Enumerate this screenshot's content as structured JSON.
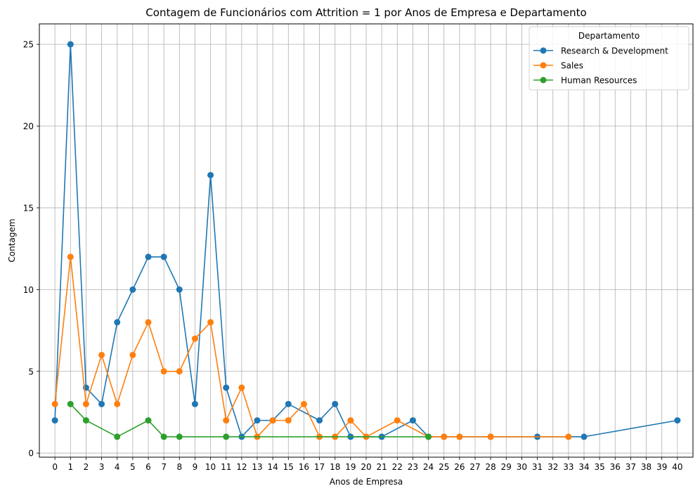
{
  "chart_data": {
    "type": "line",
    "title": "Contagem de  Funcionários com Attrition = 1 por Anos de Empresa e Departamento",
    "xlabel": "Anos de Empresa",
    "ylabel": "Contagem",
    "xticks": [
      "0",
      "1",
      "2",
      "3",
      "4",
      "5",
      "6",
      "7",
      "8",
      "9",
      "10",
      "11",
      "12",
      "13",
      "14",
      "15",
      "16",
      "17",
      "18",
      "19",
      "20",
      "21",
      "22",
      "23",
      "24",
      "25",
      "26",
      "27",
      "28",
      "29",
      "30",
      "31",
      "32",
      "33",
      "34",
      "35",
      "36",
      "37",
      "38",
      "39",
      "40"
    ],
    "yticks": [
      "0",
      "5",
      "10",
      "15",
      "20",
      "25"
    ],
    "xlim": [
      -1,
      41
    ],
    "ylim": [
      -0.25,
      26.25
    ],
    "grid": true,
    "legend": {
      "title": "Departamento",
      "position": "top-right"
    },
    "series": [
      {
        "name": "Research & Development",
        "color": "#1f77b4",
        "x": [
          0,
          1,
          2,
          3,
          4,
          5,
          6,
          7,
          8,
          9,
          10,
          11,
          12,
          13,
          14,
          15,
          17,
          18,
          19,
          21,
          23,
          24,
          25,
          26,
          28,
          31,
          34,
          40
        ],
        "y": [
          2,
          25,
          4,
          3,
          8,
          10,
          12,
          12,
          10,
          3,
          17,
          4,
          1,
          2,
          2,
          3,
          2,
          3,
          1,
          1,
          2,
          1,
          1,
          1,
          1,
          1,
          1,
          2
        ]
      },
      {
        "name": "Sales",
        "color": "#ff7f0e",
        "x": [
          0,
          1,
          2,
          3,
          4,
          5,
          6,
          7,
          8,
          9,
          10,
          11,
          12,
          13,
          14,
          15,
          16,
          17,
          18,
          19,
          20,
          22,
          24,
          25,
          26,
          28,
          33
        ],
        "y": [
          3,
          12,
          3,
          6,
          3,
          6,
          8,
          5,
          5,
          7,
          8,
          2,
          4,
          1,
          2,
          2,
          3,
          1,
          1,
          2,
          1,
          2,
          1,
          1,
          1,
          1,
          1
        ]
      },
      {
        "name": "Human Resources",
        "color": "#2ca02c",
        "x": [
          1,
          2,
          4,
          6,
          7,
          8,
          11,
          24
        ],
        "y": [
          3,
          2,
          1,
          2,
          1,
          1,
          1,
          1
        ]
      }
    ]
  }
}
